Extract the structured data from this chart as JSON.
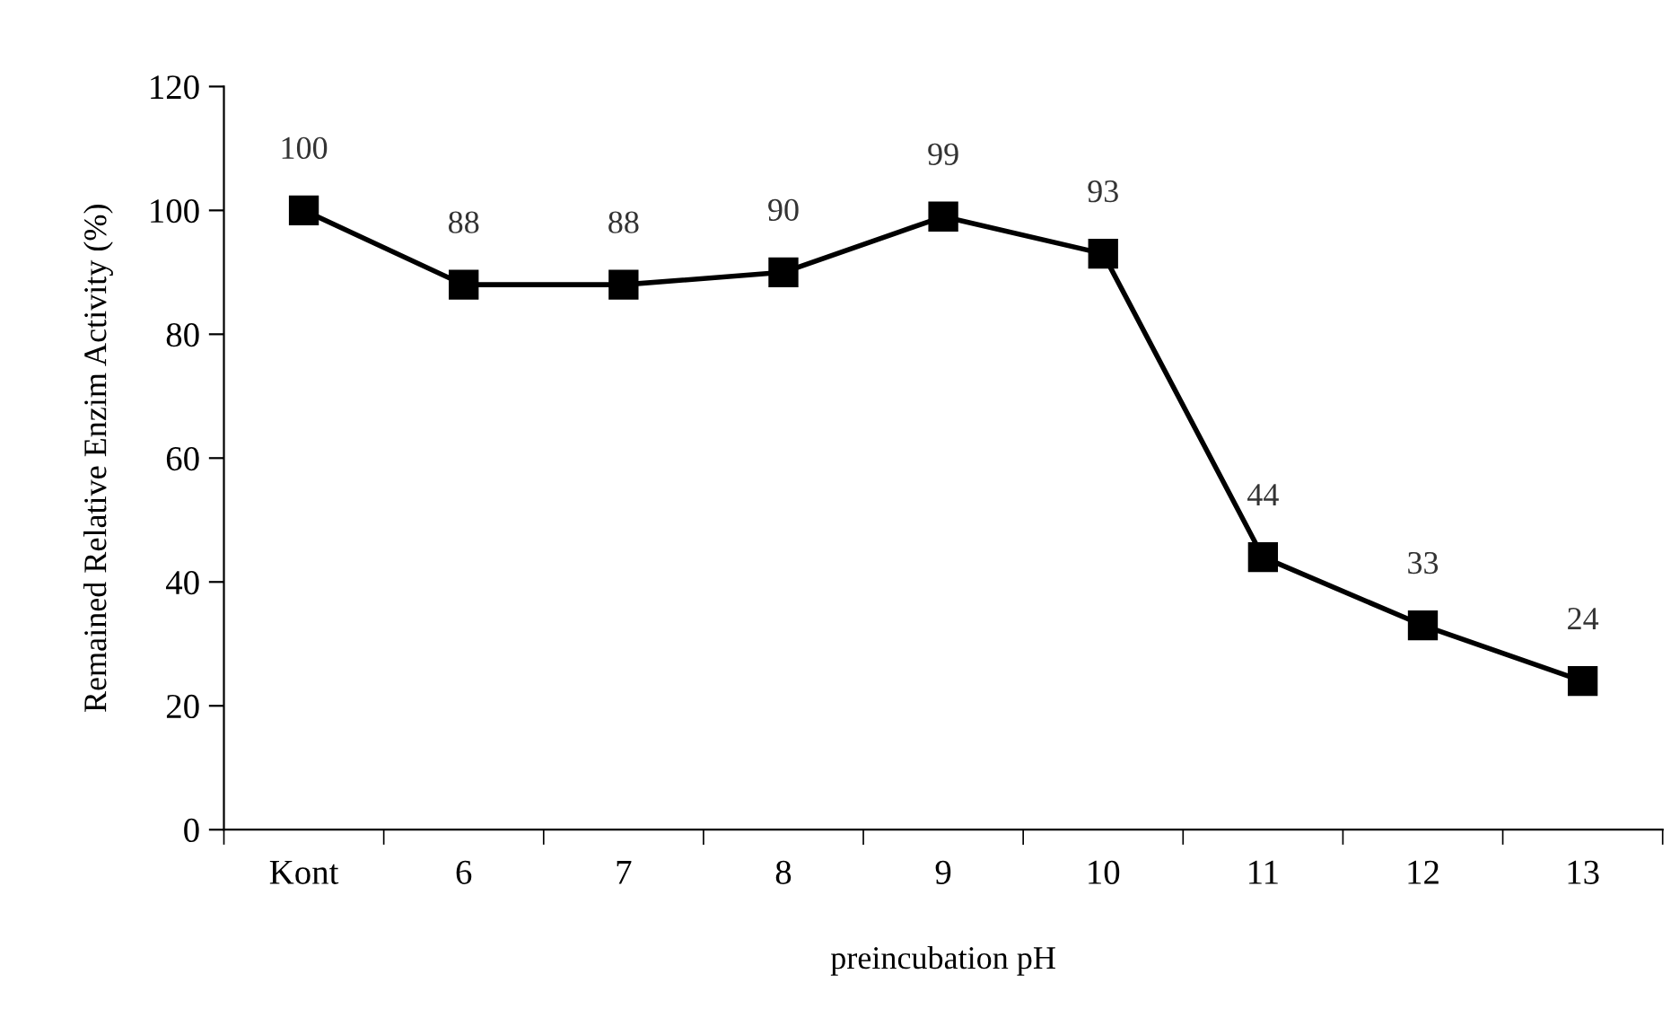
{
  "chart_data": {
    "type": "line",
    "xlabel": "preincubation pH",
    "ylabel": "Remained Relative Enzim Activity (%)",
    "categories": [
      "Kont",
      "6",
      "7",
      "8",
      "9",
      "10",
      "11",
      "12",
      "13"
    ],
    "series": [
      {
        "color": "#000000",
        "values": [
          100,
          88,
          88,
          90,
          99,
          93,
          44,
          33,
          24
        ]
      }
    ],
    "ylim": [
      0,
      120
    ],
    "yticks": [
      0,
      20,
      40,
      60,
      80,
      100,
      120
    ],
    "marker": "square",
    "line_style": "solid",
    "data_labels": true,
    "grid": false,
    "legend": false
  }
}
